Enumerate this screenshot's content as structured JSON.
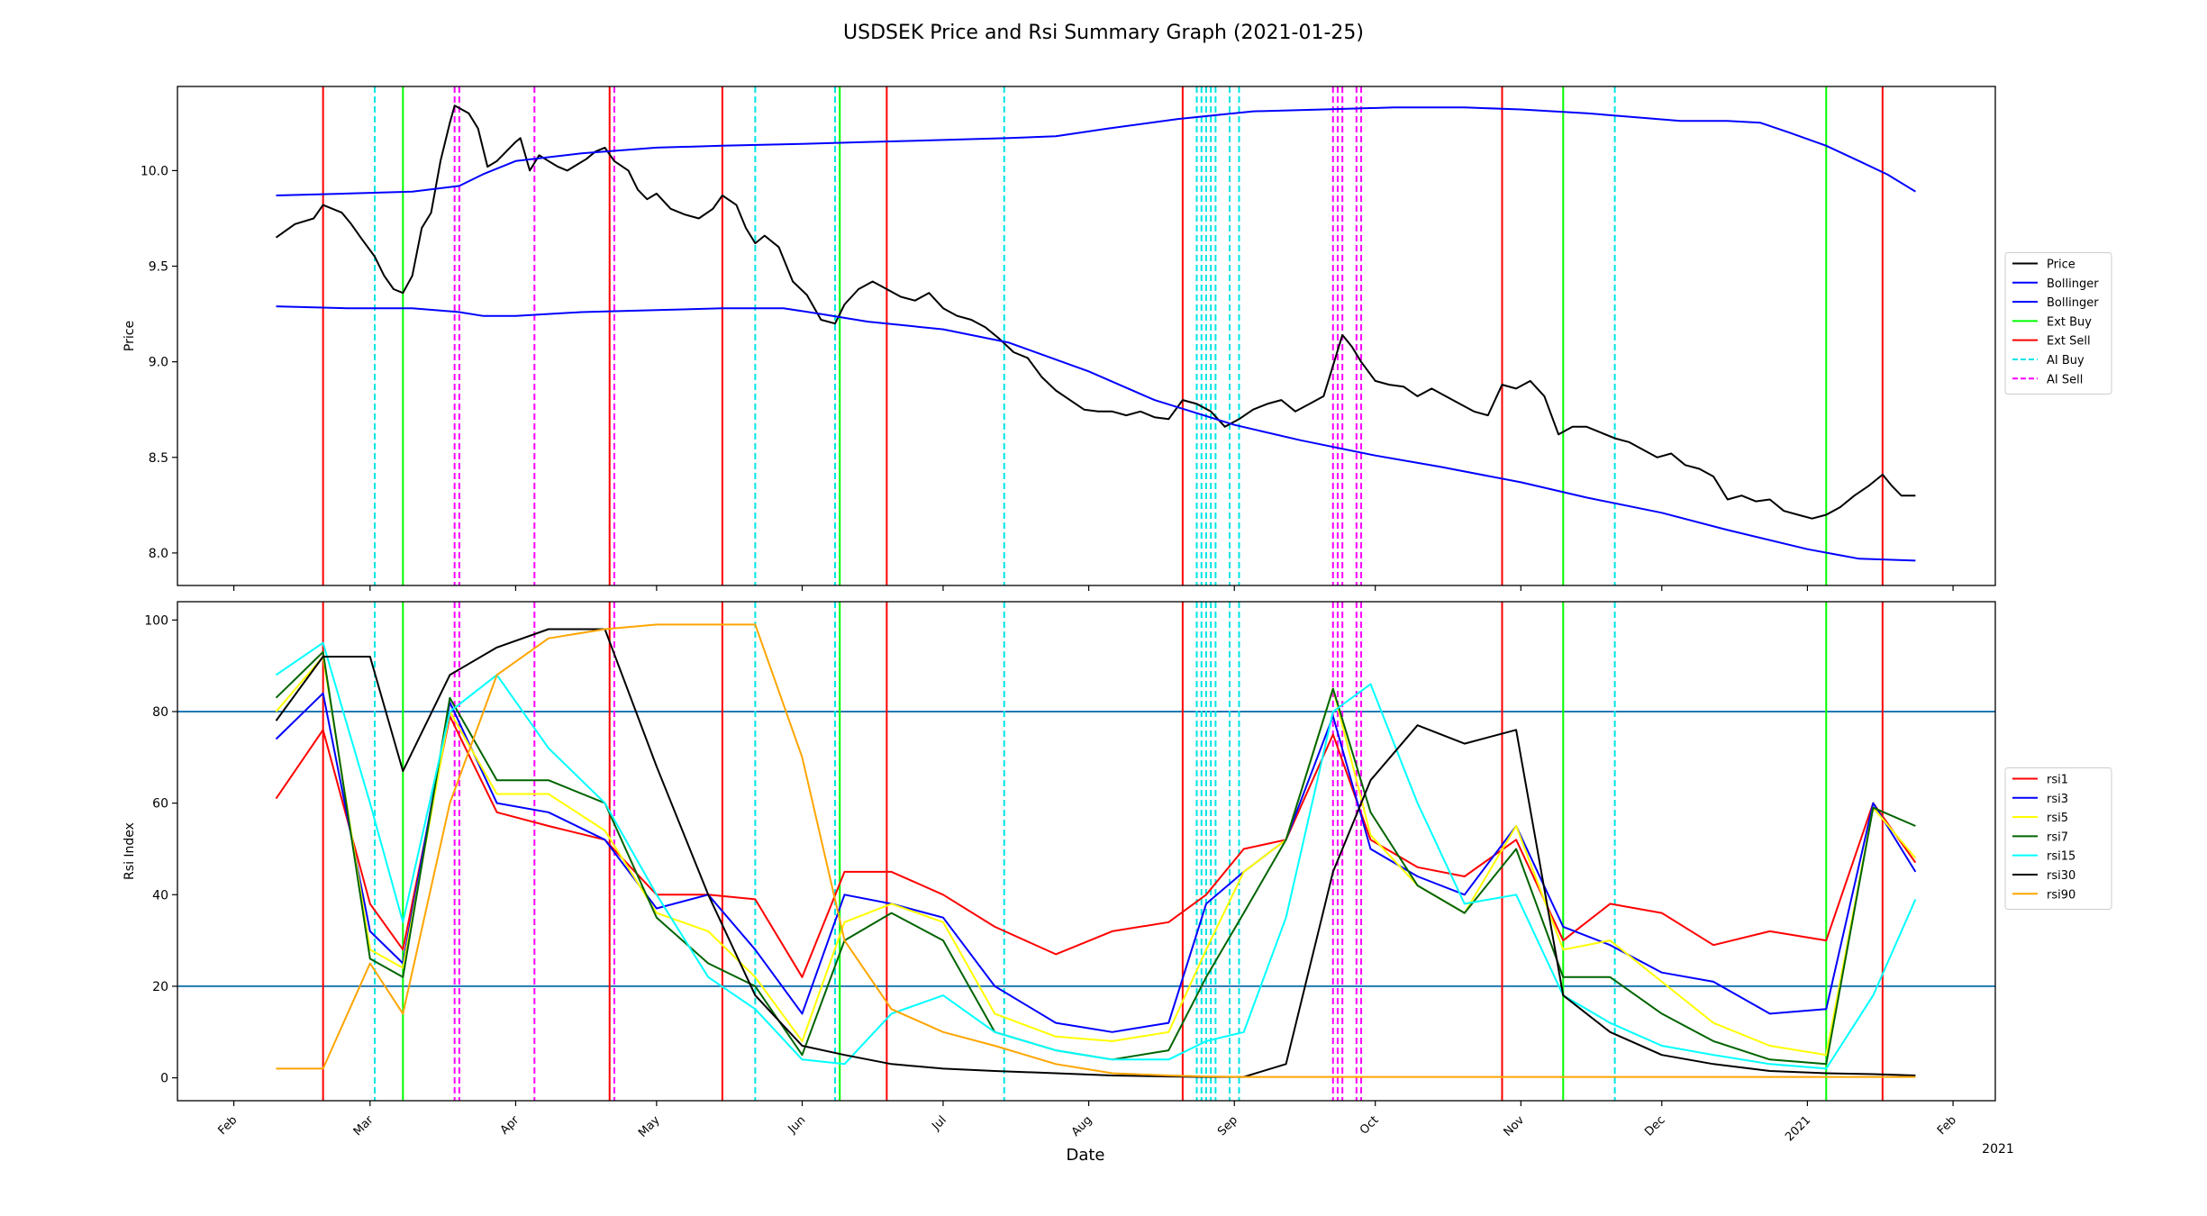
{
  "figure": {
    "title": "USDSEK Price and Rsi Summary Graph (2021-01-25)",
    "xlabel": "Date",
    "year_label": "2021"
  },
  "month_ticks": [
    {
      "label": "Feb",
      "date": "2020-02-01"
    },
    {
      "label": "Mar",
      "date": "2020-03-01"
    },
    {
      "label": "Apr",
      "date": "2020-04-01"
    },
    {
      "label": "May",
      "date": "2020-05-01"
    },
    {
      "label": "Jun",
      "date": "2020-06-01"
    },
    {
      "label": "Jul",
      "date": "2020-07-01"
    },
    {
      "label": "Aug",
      "date": "2020-08-01"
    },
    {
      "label": "Sep",
      "date": "2020-09-01"
    },
    {
      "label": "Oct",
      "date": "2020-10-01"
    },
    {
      "label": "Nov",
      "date": "2020-11-01"
    },
    {
      "label": "Dec",
      "date": "2020-12-01"
    },
    {
      "label": "2021",
      "date": "2021-01-01"
    },
    {
      "label": "Feb",
      "date": "2021-02-01"
    }
  ],
  "signals": {
    "ext_buy": {
      "color": "#00ff00",
      "dates": [
        "2020-03-08",
        "2020-06-09",
        "2020-11-10",
        "2021-01-05"
      ]
    },
    "ext_sell": {
      "color": "#ff0000",
      "dates": [
        "2020-02-20",
        "2020-04-21",
        "2020-05-15",
        "2020-06-19",
        "2020-08-21",
        "2020-10-28",
        "2021-01-17"
      ]
    },
    "ai_buy": {
      "color": "#00e5e5",
      "dates": [
        "2020-03-02",
        "2020-05-22",
        "2020-06-08",
        "2020-07-14",
        "2020-08-24",
        "2020-08-25",
        "2020-08-26",
        "2020-08-27",
        "2020-08-28",
        "2020-08-31",
        "2020-09-02",
        "2020-11-21"
      ]
    },
    "ai_sell": {
      "color": "#ff00ff",
      "dates": [
        "2020-03-19",
        "2020-03-20",
        "2020-04-05",
        "2020-04-22",
        "2020-09-22",
        "2020-09-23",
        "2020-09-24",
        "2020-09-27",
        "2020-09-28"
      ]
    }
  },
  "chart_data": [
    {
      "type": "line",
      "panel": "price",
      "ylabel": "Price",
      "ylim": [
        7.83,
        10.44
      ],
      "yticks": [
        8.0,
        8.5,
        9.0,
        9.5,
        10.0
      ],
      "ytick_labels": [
        "8.0",
        "8.5",
        "9.0",
        "9.5",
        "10.0"
      ],
      "legend": [
        "Price",
        "Bollinger",
        "Bollinger",
        "Ext Buy",
        "Ext Sell",
        "AI Buy",
        "AI Sell"
      ],
      "legend_position": "right",
      "series": [
        {
          "name": "Price",
          "color": "#000000",
          "x": [
            "2020-02-10",
            "2020-02-14",
            "2020-02-18",
            "2020-02-20",
            "2020-02-24",
            "2020-02-26",
            "2020-02-28",
            "2020-03-02",
            "2020-03-04",
            "2020-03-06",
            "2020-03-08",
            "2020-03-10",
            "2020-03-12",
            "2020-03-14",
            "2020-03-16",
            "2020-03-18",
            "2020-03-19",
            "2020-03-22",
            "2020-03-24",
            "2020-03-26",
            "2020-03-28",
            "2020-03-30",
            "2020-04-01",
            "2020-04-02",
            "2020-04-04",
            "2020-04-06",
            "2020-04-08",
            "2020-04-10",
            "2020-04-12",
            "2020-04-14",
            "2020-04-16",
            "2020-04-18",
            "2020-04-20",
            "2020-04-22",
            "2020-04-25",
            "2020-04-27",
            "2020-04-29",
            "2020-05-01",
            "2020-05-04",
            "2020-05-07",
            "2020-05-10",
            "2020-05-13",
            "2020-05-15",
            "2020-05-18",
            "2020-05-20",
            "2020-05-22",
            "2020-05-24",
            "2020-05-27",
            "2020-05-30",
            "2020-06-02",
            "2020-06-05",
            "2020-06-08",
            "2020-06-10",
            "2020-06-13",
            "2020-06-16",
            "2020-06-19",
            "2020-06-22",
            "2020-06-25",
            "2020-06-28",
            "2020-07-01",
            "2020-07-04",
            "2020-07-07",
            "2020-07-10",
            "2020-07-13",
            "2020-07-16",
            "2020-07-19",
            "2020-07-22",
            "2020-07-25",
            "2020-07-28",
            "2020-07-31",
            "2020-08-03",
            "2020-08-06",
            "2020-08-09",
            "2020-08-12",
            "2020-08-15",
            "2020-08-18",
            "2020-08-21",
            "2020-08-24",
            "2020-08-27",
            "2020-08-30",
            "2020-09-02",
            "2020-09-05",
            "2020-09-08",
            "2020-09-11",
            "2020-09-14",
            "2020-09-17",
            "2020-09-20",
            "2020-09-22",
            "2020-09-24",
            "2020-09-26",
            "2020-09-28",
            "2020-10-01",
            "2020-10-04",
            "2020-10-07",
            "2020-10-10",
            "2020-10-13",
            "2020-10-16",
            "2020-10-19",
            "2020-10-22",
            "2020-10-25",
            "2020-10-28",
            "2020-10-31",
            "2020-11-03",
            "2020-11-06",
            "2020-11-09",
            "2020-11-12",
            "2020-11-15",
            "2020-11-18",
            "2020-11-21",
            "2020-11-24",
            "2020-11-27",
            "2020-11-30",
            "2020-12-03",
            "2020-12-06",
            "2020-12-09",
            "2020-12-12",
            "2020-12-15",
            "2020-12-18",
            "2020-12-21",
            "2020-12-24",
            "2020-12-27",
            "2020-12-30",
            "2021-01-02",
            "2021-01-05",
            "2021-01-08",
            "2021-01-11",
            "2021-01-14",
            "2021-01-17",
            "2021-01-19",
            "2021-01-21",
            "2021-01-24"
          ],
          "y": [
            9.65,
            9.72,
            9.75,
            9.82,
            9.78,
            9.72,
            9.65,
            9.55,
            9.45,
            9.38,
            9.36,
            9.45,
            9.7,
            9.78,
            10.05,
            10.25,
            10.34,
            10.3,
            10.22,
            10.02,
            10.05,
            10.1,
            10.15,
            10.17,
            10.0,
            10.08,
            10.05,
            10.02,
            10.0,
            10.03,
            10.06,
            10.1,
            10.12,
            10.05,
            10.0,
            9.9,
            9.85,
            9.88,
            9.8,
            9.77,
            9.75,
            9.8,
            9.87,
            9.82,
            9.7,
            9.62,
            9.66,
            9.6,
            9.42,
            9.35,
            9.22,
            9.2,
            9.3,
            9.38,
            9.42,
            9.38,
            9.34,
            9.32,
            9.36,
            9.28,
            9.24,
            9.22,
            9.18,
            9.12,
            9.05,
            9.02,
            8.92,
            8.85,
            8.8,
            8.75,
            8.74,
            8.74,
            8.72,
            8.74,
            8.71,
            8.7,
            8.8,
            8.78,
            8.74,
            8.66,
            8.7,
            8.75,
            8.78,
            8.8,
            8.74,
            8.78,
            8.82,
            8.98,
            9.14,
            9.08,
            9.0,
            8.9,
            8.88,
            8.87,
            8.82,
            8.86,
            8.82,
            8.78,
            8.74,
            8.72,
            8.88,
            8.86,
            8.9,
            8.82,
            8.62,
            8.66,
            8.66,
            8.63,
            8.6,
            8.58,
            8.54,
            8.5,
            8.52,
            8.46,
            8.44,
            8.4,
            8.28,
            8.3,
            8.27,
            8.28,
            8.22,
            8.2,
            8.18,
            8.2,
            8.24,
            8.3,
            8.35,
            8.41,
            8.35,
            8.3,
            8.3
          ]
        },
        {
          "name": "Bollinger",
          "color": "#0000ff",
          "x": [
            "2020-02-10",
            "2020-02-25",
            "2020-03-10",
            "2020-03-20",
            "2020-03-25",
            "2020-04-01",
            "2020-04-15",
            "2020-05-01",
            "2020-05-15",
            "2020-06-01",
            "2020-06-15",
            "2020-07-01",
            "2020-07-15",
            "2020-07-25",
            "2020-08-05",
            "2020-08-20",
            "2020-09-05",
            "2020-09-20",
            "2020-10-05",
            "2020-10-20",
            "2020-11-01",
            "2020-11-15",
            "2020-11-25",
            "2020-12-05",
            "2020-12-15",
            "2020-12-22",
            "2020-12-28",
            "2021-01-05",
            "2021-01-12",
            "2021-01-18",
            "2021-01-24"
          ],
          "y": [
            9.87,
            9.88,
            9.89,
            9.92,
            9.98,
            10.05,
            10.09,
            10.12,
            10.13,
            10.14,
            10.15,
            10.16,
            10.17,
            10.18,
            10.22,
            10.27,
            10.31,
            10.32,
            10.33,
            10.33,
            10.32,
            10.3,
            10.28,
            10.26,
            10.26,
            10.25,
            10.2,
            10.13,
            10.05,
            9.98,
            9.89
          ]
        },
        {
          "name": "Bollinger",
          "color": "#0000ff",
          "x": [
            "2020-02-10",
            "2020-02-25",
            "2020-03-10",
            "2020-03-20",
            "2020-03-25",
            "2020-04-01",
            "2020-04-15",
            "2020-05-01",
            "2020-05-15",
            "2020-05-28",
            "2020-06-05",
            "2020-06-15",
            "2020-07-01",
            "2020-07-15",
            "2020-08-01",
            "2020-08-15",
            "2020-09-01",
            "2020-09-15",
            "2020-10-01",
            "2020-10-15",
            "2020-11-01",
            "2020-11-15",
            "2020-12-01",
            "2020-12-15",
            "2021-01-01",
            "2021-01-12",
            "2021-01-24"
          ],
          "y": [
            9.29,
            9.28,
            9.28,
            9.26,
            9.24,
            9.24,
            9.26,
            9.27,
            9.28,
            9.28,
            9.25,
            9.21,
            9.17,
            9.1,
            8.95,
            8.8,
            8.67,
            8.59,
            8.51,
            8.45,
            8.37,
            8.29,
            8.21,
            8.12,
            8.02,
            7.97,
            7.96
          ]
        }
      ]
    },
    {
      "type": "line",
      "panel": "rsi",
      "ylabel": "Rsi Index",
      "ylim": [
        -5,
        104
      ],
      "yticks": [
        0,
        20,
        40,
        60,
        80,
        100
      ],
      "ytick_labels": [
        "0",
        "20",
        "40",
        "60",
        "80",
        "100"
      ],
      "hlines": [
        20,
        80
      ],
      "hline_color": "#1f77b4",
      "legend": [
        "rsi1",
        "rsi3",
        "rsi5",
        "rsi7",
        "rsi15",
        "rsi30",
        "rsi90"
      ],
      "legend_position": "right",
      "x": [
        "2020-02-10",
        "2020-02-20",
        "2020-03-01",
        "2020-03-08",
        "2020-03-18",
        "2020-03-28",
        "2020-04-08",
        "2020-04-20",
        "2020-05-01",
        "2020-05-12",
        "2020-05-22",
        "2020-06-01",
        "2020-06-10",
        "2020-06-20",
        "2020-07-01",
        "2020-07-12",
        "2020-07-25",
        "2020-08-06",
        "2020-08-18",
        "2020-08-26",
        "2020-09-03",
        "2020-09-12",
        "2020-09-22",
        "2020-09-30",
        "2020-10-10",
        "2020-10-20",
        "2020-10-31",
        "2020-11-10",
        "2020-11-20",
        "2020-12-01",
        "2020-12-12",
        "2020-12-24",
        "2021-01-05",
        "2021-01-15",
        "2021-01-24"
      ],
      "series": [
        {
          "name": "rsi1",
          "color": "#ff0000",
          "values": [
            61,
            76,
            38,
            28,
            79,
            58,
            55,
            52,
            40,
            40,
            39,
            22,
            45,
            45,
            40,
            33,
            27,
            32,
            34,
            40,
            50,
            52,
            75,
            52,
            46,
            44,
            52,
            30,
            38,
            36,
            29,
            32,
            30,
            60,
            47
          ]
        },
        {
          "name": "rsi3",
          "color": "#0000ff",
          "values": [
            74,
            84,
            32,
            25,
            82,
            60,
            58,
            52,
            37,
            40,
            28,
            14,
            40,
            38,
            35,
            20,
            12,
            10,
            12,
            38,
            45,
            52,
            79,
            50,
            44,
            40,
            55,
            33,
            29,
            23,
            21,
            14,
            15,
            60,
            45
          ]
        },
        {
          "name": "rsi5",
          "color": "#ffff00",
          "values": [
            80,
            92,
            28,
            24,
            80,
            62,
            62,
            54,
            36,
            32,
            22,
            8,
            34,
            38,
            34,
            14,
            9,
            8,
            10,
            28,
            45,
            52,
            85,
            53,
            42,
            36,
            55,
            28,
            30,
            21,
            12,
            7,
            5,
            59,
            48
          ]
        },
        {
          "name": "rsi7",
          "color": "#006400",
          "values": [
            83,
            93,
            26,
            22,
            83,
            65,
            65,
            60,
            35,
            25,
            20,
            5,
            30,
            36,
            30,
            10,
            6,
            4,
            6,
            22,
            36,
            52,
            85,
            58,
            42,
            36,
            50,
            22,
            22,
            14,
            8,
            4,
            3,
            59,
            55
          ]
        },
        {
          "name": "rsi15",
          "color": "#00ffff",
          "values": [
            88,
            95,
            60,
            34,
            80,
            88,
            72,
            60,
            40,
            22,
            15,
            4,
            3,
            14,
            18,
            10,
            6,
            4,
            4,
            8,
            10,
            35,
            80,
            86,
            60,
            38,
            40,
            18,
            12,
            7,
            5,
            3,
            2,
            18,
            39
          ]
        },
        {
          "name": "rsi30",
          "color": "#000000",
          "values": [
            78,
            92,
            92,
            67,
            88,
            94,
            98,
            98,
            68,
            40,
            18,
            7,
            5,
            3,
            2,
            1.5,
            1,
            0.5,
            0.3,
            0.2,
            0.2,
            3,
            45,
            65,
            77,
            73,
            76,
            18,
            10,
            5,
            3,
            1.5,
            1,
            0.8,
            0.5
          ]
        },
        {
          "name": "rsi90",
          "color": "#ffa500",
          "values": [
            2,
            2,
            25,
            14,
            60,
            88,
            96,
            98,
            99,
            99,
            99,
            70,
            30,
            15,
            10,
            7,
            3,
            1,
            0.5,
            0.3,
            0.2,
            0.2,
            0.2,
            0.2,
            0.2,
            0.2,
            0.2,
            0.2,
            0.2,
            0.2,
            0.2,
            0.2,
            0.2,
            0.2,
            0.2
          ]
        }
      ]
    }
  ]
}
